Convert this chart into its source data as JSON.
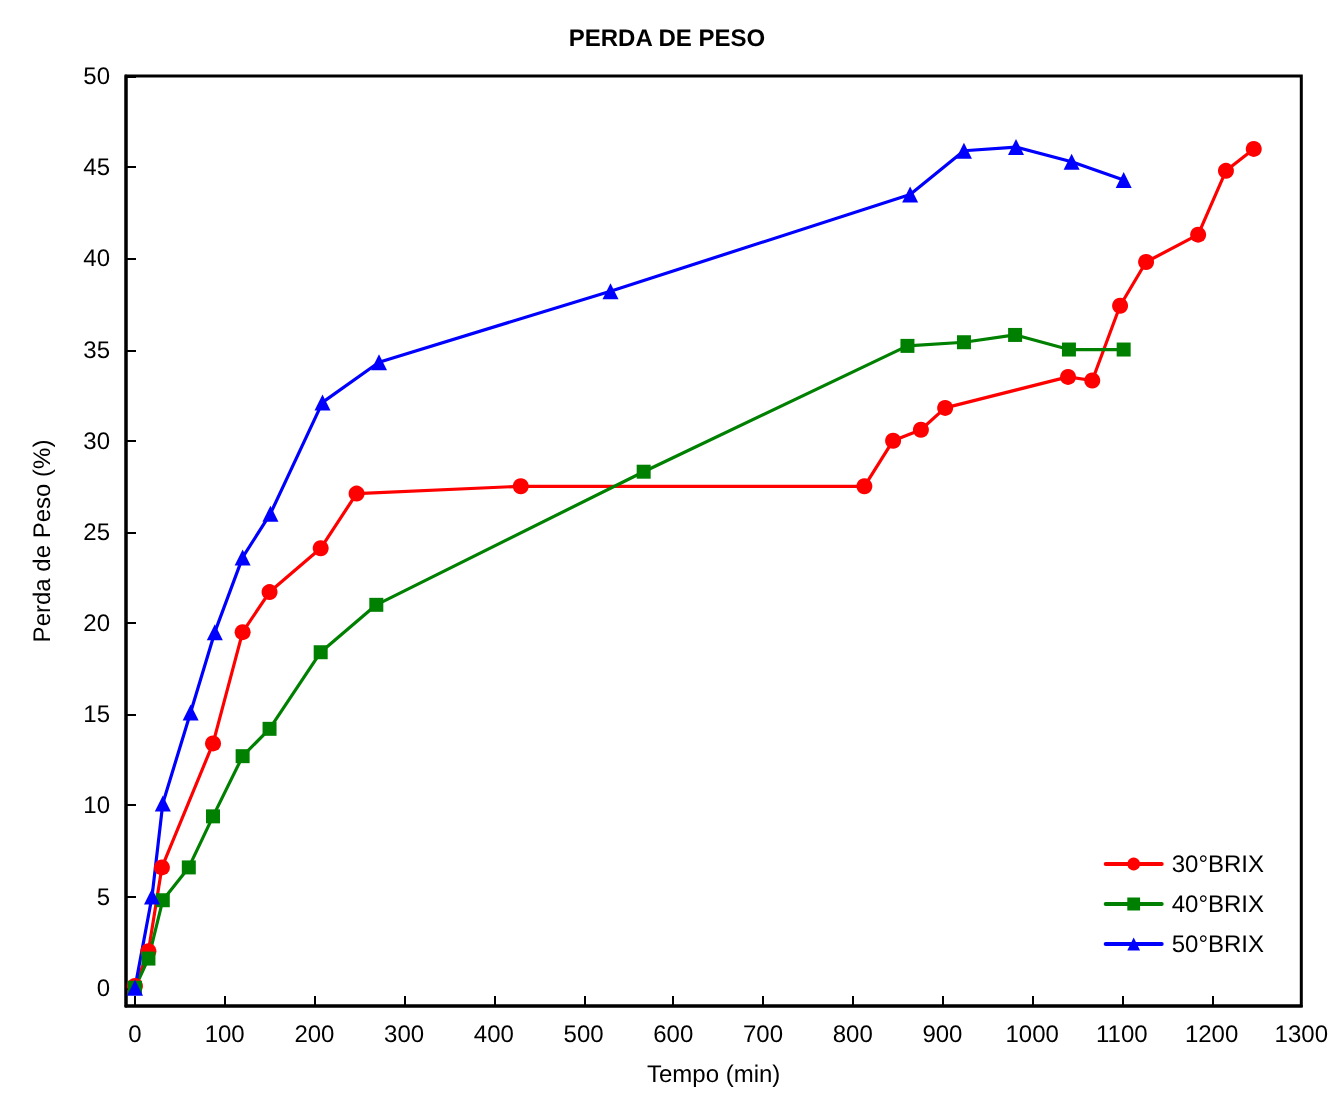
{
  "chart_data": {
    "type": "line",
    "title": "PERDA DE PESO",
    "xlabel": "Tempo (min)",
    "ylabel": "Perda de Peso (%)",
    "xlim": [
      -10,
      1300
    ],
    "xticks": [
      0,
      100,
      200,
      300,
      400,
      500,
      600,
      700,
      800,
      900,
      1000,
      1100,
      1200,
      1300
    ],
    "ylim": [
      -1,
      50
    ],
    "yticks": [
      0,
      5,
      10,
      15,
      20,
      25,
      30,
      35,
      40,
      45,
      50
    ],
    "grid": false,
    "legend": "bottom right",
    "line_style": "solid",
    "series": [
      {
        "name": "30°BRIX",
        "color": "#ff0000",
        "marker": "circle",
        "x": [
          0,
          15,
          30,
          87,
          120,
          150,
          207,
          247,
          430,
          813,
          845,
          876,
          903,
          1040,
          1067,
          1098,
          1127,
          1185,
          1216,
          1247
        ],
        "values": [
          0.1,
          2,
          6.6,
          13.4,
          19.5,
          21.7,
          24.1,
          27.1,
          27.5,
          27.5,
          30,
          30.6,
          31.8,
          33.5,
          33.3,
          37.4,
          39.8,
          41.3,
          44.8,
          46
        ]
      },
      {
        "name": "40°BRIX",
        "color": "#008000",
        "marker": "square",
        "x": [
          0,
          15,
          31,
          60,
          87,
          120,
          150,
          207,
          269,
          567,
          861,
          924,
          981,
          1041,
          1102
        ],
        "values": [
          0,
          1.6,
          4.8,
          6.6,
          9.4,
          12.7,
          14.2,
          18.4,
          21,
          28.3,
          35.2,
          35.4,
          35.8,
          35,
          35
        ]
      },
      {
        "name": "50°BRIX",
        "color": "#0000ff",
        "marker": "triangle",
        "x": [
          0,
          19,
          31,
          62,
          89,
          120,
          151,
          209,
          272,
          530,
          864,
          924,
          982,
          1044,
          1102
        ],
        "values": [
          0,
          5,
          10.1,
          15.1,
          19.5,
          23.6,
          26,
          32.1,
          34.3,
          38.2,
          43.5,
          45.9,
          46.1,
          45.3,
          44.3
        ]
      }
    ]
  }
}
